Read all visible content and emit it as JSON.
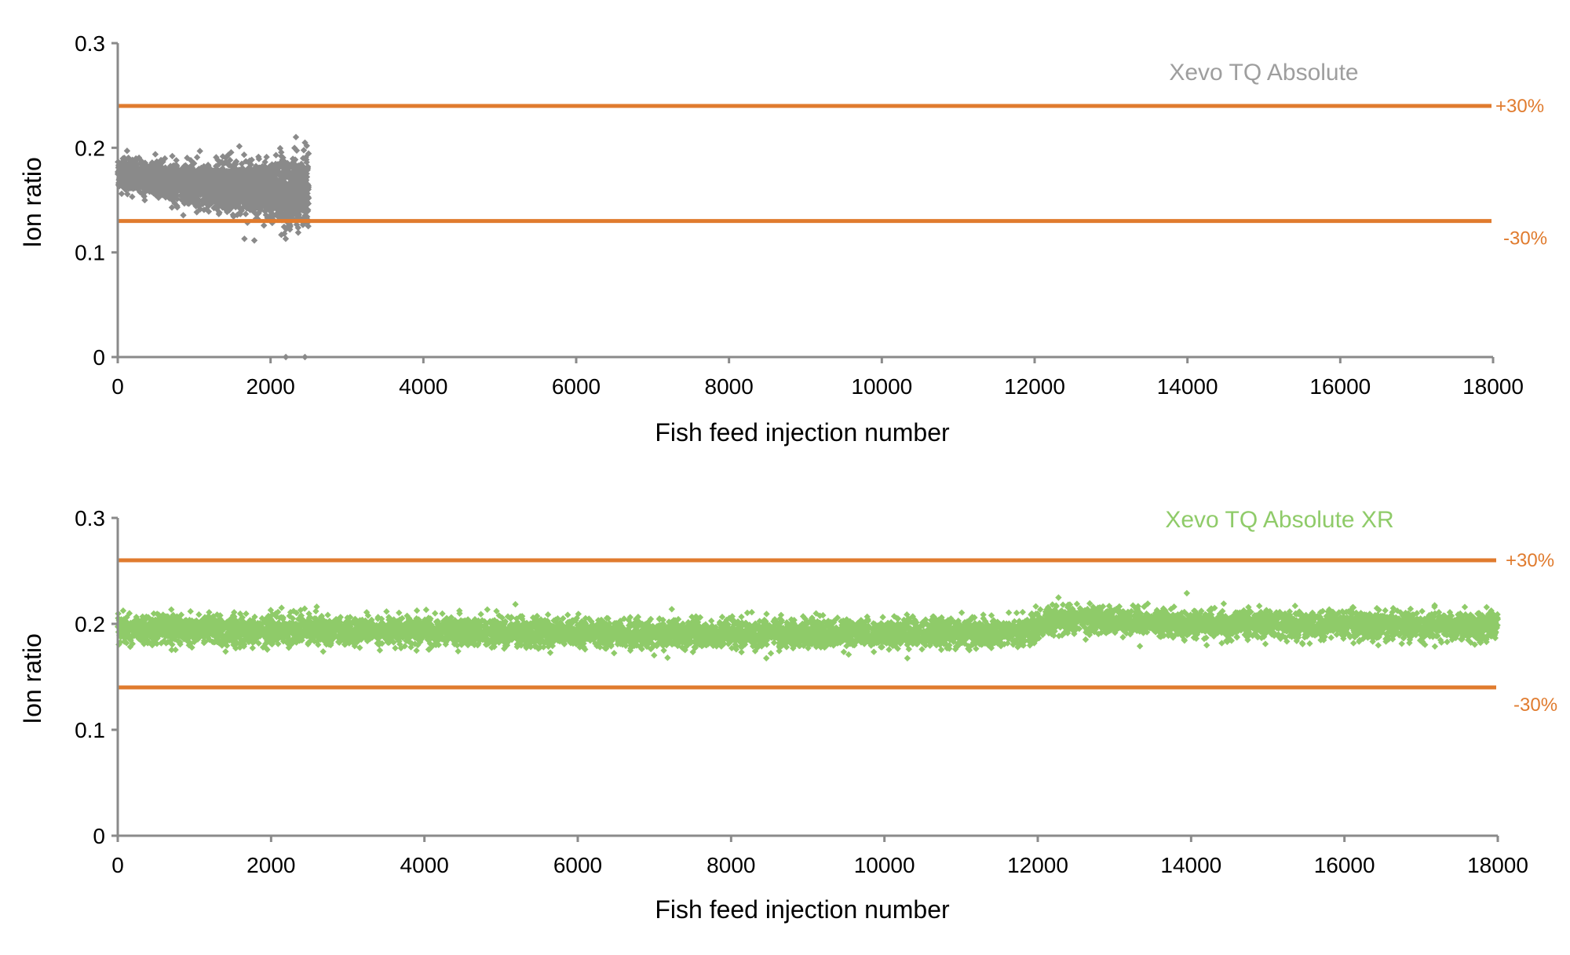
{
  "chart_data": [
    {
      "type": "scatter",
      "xlabel": "Fish feed injection number",
      "ylabel": "Ion ratio",
      "xlim": [
        0,
        18000
      ],
      "ylim": [
        0,
        0.3
      ],
      "x_ticks": [
        0,
        2000,
        4000,
        6000,
        8000,
        10000,
        12000,
        14000,
        16000,
        18000
      ],
      "y_ticks": [
        0,
        0.1,
        0.2,
        0.3
      ],
      "x_tick_labels": [
        "0",
        "2000",
        "4000",
        "6000",
        "8000",
        "10000",
        "12000",
        "14000",
        "16000",
        "18000"
      ],
      "y_tick_labels": [
        "0",
        "0.1",
        "0.2",
        "0.3"
      ],
      "grid": false,
      "series": [
        {
          "name": "Xevo TQ Absolute",
          "color": "#8a8a8a",
          "marker": "diamond",
          "x_range": [
            0,
            2500
          ],
          "trend": [
            {
              "x": 0,
              "mean": 0.175,
              "spread": 0.012
            },
            {
              "x": 1000,
              "mean": 0.165,
              "spread": 0.015
            },
            {
              "x": 1800,
              "mean": 0.16,
              "spread": 0.022
            },
            {
              "x": 2500,
              "mean": 0.16,
              "spread": 0.03
            }
          ],
          "outliers": [
            {
              "x": 2200,
              "y": 0.0
            },
            {
              "x": 2450,
              "y": 0.0
            }
          ]
        }
      ],
      "limits": [
        {
          "label": "+30%",
          "y": 0.24,
          "color": "#e07b2e"
        },
        {
          "label": "-30%",
          "y": 0.13,
          "color": "#e07b2e"
        }
      ]
    },
    {
      "type": "scatter",
      "xlabel": "Fish feed injection number",
      "ylabel": "Ion ratio",
      "xlim": [
        0,
        18000
      ],
      "ylim": [
        0,
        0.3
      ],
      "x_ticks": [
        0,
        2000,
        4000,
        6000,
        8000,
        10000,
        12000,
        14000,
        16000,
        18000
      ],
      "y_ticks": [
        0,
        0.1,
        0.2,
        0.3
      ],
      "x_tick_labels": [
        "0",
        "2000",
        "4000",
        "6000",
        "8000",
        "10000",
        "12000",
        "14000",
        "16000",
        "18000"
      ],
      "y_tick_labels": [
        "0",
        "0.1",
        "0.2",
        "0.3"
      ],
      "grid": false,
      "series": [
        {
          "name": "Xevo TQ Absolute XR",
          "color": "#8fcb69",
          "marker": "diamond",
          "x_range": [
            0,
            18000
          ],
          "trend": [
            {
              "x": 0,
              "mean": 0.195,
              "spread": 0.012
            },
            {
              "x": 4000,
              "mean": 0.193,
              "spread": 0.012
            },
            {
              "x": 8000,
              "mean": 0.19,
              "spread": 0.012
            },
            {
              "x": 11800,
              "mean": 0.192,
              "spread": 0.012
            },
            {
              "x": 12200,
              "mean": 0.205,
              "spread": 0.012
            },
            {
              "x": 14000,
              "mean": 0.2,
              "spread": 0.012
            },
            {
              "x": 18000,
              "mean": 0.198,
              "spread": 0.012
            }
          ],
          "outliers": []
        }
      ],
      "limits": [
        {
          "label": "+30%",
          "y": 0.26,
          "color": "#e07b2e"
        },
        {
          "label": "-30%",
          "y": 0.14,
          "color": "#e07b2e"
        }
      ]
    }
  ]
}
